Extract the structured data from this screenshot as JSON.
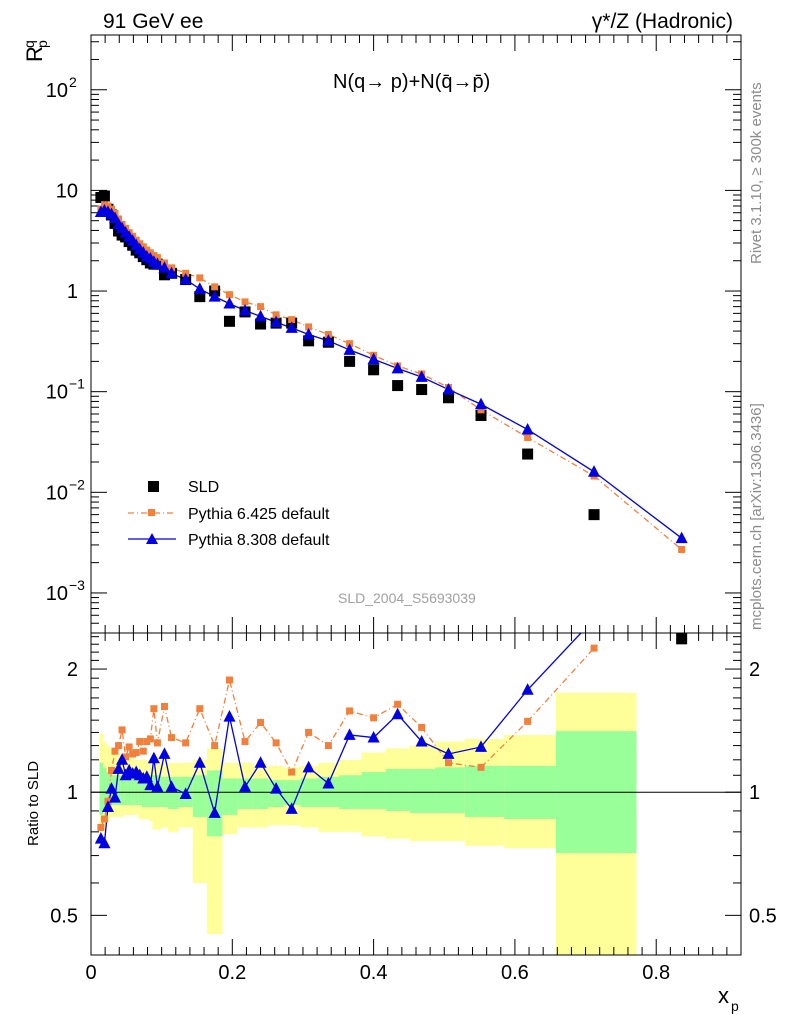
{
  "header": {
    "left": "91 GeV ee",
    "right": "γ*/Z (Hadronic)"
  },
  "side_labels": {
    "rivet": "Rivet 3.1.10, ≥ 300k events",
    "mcplots": "mcplots.cern.ch [arXiv:1306.3436]"
  },
  "chart_data": [
    {
      "type": "scatter",
      "title": "N(q→ p)+N(q̄→p̄)",
      "ylabel": "R",
      "ylabel_sup": "q",
      "ylabel_sub": "p",
      "xlabel": "",
      "yscale": "log",
      "ylim": [
        0.0004,
        350
      ],
      "xlim": [
        0,
        0.92
      ],
      "yticks": [
        {
          "v": 0.001,
          "base": "10",
          "exp": "−3"
        },
        {
          "v": 0.01,
          "base": "10",
          "exp": "−2"
        },
        {
          "v": 0.1,
          "base": "10",
          "exp": "−1"
        },
        {
          "v": 1,
          "base": "1",
          "exp": ""
        },
        {
          "v": 10,
          "base": "10",
          "exp": ""
        },
        {
          "v": 100,
          "base": "10",
          "exp": "2"
        }
      ],
      "watermark": "SLD_2004_S5693039",
      "legend_position": "bottom-left",
      "legend": [
        {
          "label": "SLD",
          "marker": "square",
          "color": "#000000"
        },
        {
          "label": "Pythia 6.425 default",
          "marker": "square-small",
          "color": "#f0803c",
          "dash": "dashdot"
        },
        {
          "label": "Pythia 8.308 default",
          "marker": "triangle",
          "color": "#0000e0",
          "dash": "solid"
        }
      ],
      "series": [
        {
          "name": "SLD",
          "x": [
            0.014,
            0.019,
            0.024,
            0.029,
            0.034,
            0.039,
            0.044,
            0.049,
            0.054,
            0.059,
            0.064,
            0.069,
            0.074,
            0.079,
            0.084,
            0.089,
            0.094,
            0.104,
            0.114,
            0.134,
            0.154,
            0.175,
            0.196,
            0.218,
            0.24,
            0.262,
            0.284,
            0.308,
            0.336,
            0.366,
            0.4,
            0.434,
            0.468,
            0.506,
            0.552,
            0.618,
            0.712,
            0.836
          ],
          "y": [
            8.5,
            8.8,
            6.5,
            5.7,
            4.7,
            3.95,
            3.6,
            3.45,
            3.1,
            2.85,
            2.55,
            2.4,
            2.2,
            2.05,
            1.9,
            1.85,
            1.85,
            1.45,
            1.5,
            1.3,
            0.88,
            1.0,
            0.5,
            0.62,
            0.47,
            0.48,
            0.48,
            0.32,
            0.31,
            0.2,
            0.165,
            0.115,
            0.105,
            0.087,
            0.058,
            0.024,
            0.006,
            0.00035
          ]
        },
        {
          "name": "Pythia 6.425 default",
          "x": [
            0.014,
            0.019,
            0.024,
            0.029,
            0.034,
            0.039,
            0.044,
            0.049,
            0.054,
            0.059,
            0.064,
            0.069,
            0.074,
            0.079,
            0.084,
            0.089,
            0.094,
            0.104,
            0.114,
            0.134,
            0.154,
            0.175,
            0.196,
            0.218,
            0.24,
            0.262,
            0.284,
            0.308,
            0.336,
            0.366,
            0.4,
            0.434,
            0.468,
            0.506,
            0.552,
            0.618,
            0.712,
            0.836
          ],
          "y": [
            6.5,
            7.2,
            7.0,
            6.5,
            5.9,
            5.2,
            4.6,
            4.2,
            3.8,
            3.5,
            3.2,
            2.95,
            2.75,
            2.55,
            2.4,
            2.25,
            2.15,
            1.9,
            1.7,
            1.5,
            1.35,
            1.1,
            0.92,
            0.78,
            0.7,
            0.58,
            0.52,
            0.44,
            0.37,
            0.3,
            0.23,
            0.18,
            0.15,
            0.11,
            0.066,
            0.035,
            0.0145,
            0.0027
          ]
        },
        {
          "name": "Pythia 8.308 default",
          "x": [
            0.014,
            0.019,
            0.024,
            0.029,
            0.034,
            0.039,
            0.044,
            0.049,
            0.054,
            0.059,
            0.064,
            0.069,
            0.074,
            0.079,
            0.084,
            0.089,
            0.094,
            0.104,
            0.114,
            0.134,
            0.154,
            0.175,
            0.196,
            0.218,
            0.24,
            0.262,
            0.284,
            0.308,
            0.336,
            0.366,
            0.4,
            0.434,
            0.468,
            0.506,
            0.552,
            0.618,
            0.712,
            0.836
          ],
          "y": [
            6.1,
            6.3,
            6.1,
            5.8,
            5.3,
            4.6,
            4.2,
            3.8,
            3.45,
            3.15,
            2.85,
            2.6,
            2.4,
            2.2,
            2.1,
            1.95,
            1.85,
            1.7,
            1.5,
            1.3,
            1.05,
            0.88,
            0.75,
            0.64,
            0.56,
            0.49,
            0.43,
            0.37,
            0.32,
            0.26,
            0.21,
            0.17,
            0.14,
            0.105,
            0.075,
            0.042,
            0.016,
            0.0035
          ]
        }
      ]
    },
    {
      "type": "line",
      "ylabel": "Ratio to SLD",
      "xlabel": "x",
      "xlabel_sub": "p",
      "yscale": "log",
      "ylim": [
        0.4,
        2.45
      ],
      "xlim": [
        0,
        0.92
      ],
      "yticks": [
        {
          "v": 0.5,
          "label": "0.5"
        },
        {
          "v": 1,
          "label": "1"
        },
        {
          "v": 2,
          "label": "2"
        }
      ],
      "xticks": [
        {
          "v": 0,
          "label": "0"
        },
        {
          "v": 0.2,
          "label": "0.2"
        },
        {
          "v": 0.4,
          "label": "0.4"
        },
        {
          "v": 0.6,
          "label": "0.6"
        },
        {
          "v": 0.8,
          "label": "0.8"
        }
      ],
      "bands": {
        "x_edges": [
          0.012,
          0.017,
          0.022,
          0.027,
          0.032,
          0.037,
          0.042,
          0.047,
          0.052,
          0.057,
          0.062,
          0.067,
          0.072,
          0.077,
          0.082,
          0.087,
          0.092,
          0.099,
          0.109,
          0.124,
          0.144,
          0.164,
          0.186,
          0.207,
          0.229,
          0.251,
          0.273,
          0.296,
          0.322,
          0.351,
          0.383,
          0.417,
          0.451,
          0.487,
          0.529,
          0.585,
          0.658,
          0.772
        ],
        "stat": [
          [
            0.88,
            1.18
          ],
          [
            0.9,
            1.15
          ],
          [
            0.92,
            1.12
          ],
          [
            0.93,
            1.1
          ],
          [
            0.93,
            1.1
          ],
          [
            0.93,
            1.1
          ],
          [
            0.93,
            1.1
          ],
          [
            0.93,
            1.1
          ],
          [
            0.93,
            1.1
          ],
          [
            0.93,
            1.1
          ],
          [
            0.93,
            1.1
          ],
          [
            0.93,
            1.1
          ],
          [
            0.92,
            1.1
          ],
          [
            0.92,
            1.1
          ],
          [
            0.92,
            1.1
          ],
          [
            0.92,
            1.1
          ],
          [
            0.92,
            1.1
          ],
          [
            0.92,
            1.09
          ],
          [
            0.91,
            1.09
          ],
          [
            0.92,
            1.09
          ],
          [
            0.87,
            1.1
          ],
          [
            0.78,
            1.13
          ],
          [
            0.88,
            1.08
          ],
          [
            0.91,
            1.08
          ],
          [
            0.91,
            1.08
          ],
          [
            0.92,
            1.07
          ],
          [
            0.93,
            1.07
          ],
          [
            0.92,
            1.08
          ],
          [
            0.92,
            1.09
          ],
          [
            0.91,
            1.1
          ],
          [
            0.91,
            1.12
          ],
          [
            0.9,
            1.14
          ],
          [
            0.89,
            1.14
          ],
          [
            0.89,
            1.15
          ],
          [
            0.87,
            1.16
          ],
          [
            0.86,
            1.16
          ],
          [
            0.71,
            1.41
          ]
        ],
        "total": [
          [
            0.8,
            1.39
          ],
          [
            0.82,
            1.33
          ],
          [
            0.85,
            1.3
          ],
          [
            0.87,
            1.28
          ],
          [
            0.87,
            1.25
          ],
          [
            0.87,
            1.24
          ],
          [
            0.87,
            1.22
          ],
          [
            0.88,
            1.22
          ],
          [
            0.88,
            1.21
          ],
          [
            0.88,
            1.21
          ],
          [
            0.88,
            1.2
          ],
          [
            0.86,
            1.2
          ],
          [
            0.86,
            1.2
          ],
          [
            0.86,
            1.2
          ],
          [
            0.85,
            1.2
          ],
          [
            0.81,
            1.2
          ],
          [
            0.81,
            1.2
          ],
          [
            0.82,
            1.18
          ],
          [
            0.8,
            1.18
          ],
          [
            0.82,
            1.18
          ],
          [
            0.6,
            1.2
          ],
          [
            0.45,
            1.28
          ],
          [
            0.79,
            1.18
          ],
          [
            0.82,
            1.18
          ],
          [
            0.82,
            1.16
          ],
          [
            0.83,
            1.16
          ],
          [
            0.83,
            1.15
          ],
          [
            0.82,
            1.16
          ],
          [
            0.8,
            1.18
          ],
          [
            0.8,
            1.2
          ],
          [
            0.78,
            1.25
          ],
          [
            0.77,
            1.28
          ],
          [
            0.76,
            1.3
          ],
          [
            0.76,
            1.33
          ],
          [
            0.74,
            1.35
          ],
          [
            0.73,
            1.38
          ],
          [
            0.3,
            1.75
          ]
        ]
      },
      "series": [
        {
          "name": "Pythia 6.425 default",
          "x": [
            0.014,
            0.019,
            0.024,
            0.029,
            0.034,
            0.039,
            0.044,
            0.049,
            0.054,
            0.059,
            0.064,
            0.069,
            0.074,
            0.079,
            0.084,
            0.089,
            0.094,
            0.104,
            0.114,
            0.134,
            0.154,
            0.175,
            0.196,
            0.218,
            0.24,
            0.262,
            0.284,
            0.308,
            0.336,
            0.366,
            0.4,
            0.434,
            0.468,
            0.506,
            0.552,
            0.618,
            0.712
          ],
          "y": [
            0.82,
            0.86,
            0.95,
            1.13,
            1.26,
            1.3,
            1.42,
            1.22,
            1.29,
            1.24,
            1.25,
            1.33,
            1.26,
            1.33,
            1.35,
            1.6,
            1.32,
            1.62,
            1.36,
            1.32,
            1.6,
            1.3,
            1.88,
            1.33,
            1.48,
            1.32,
            1.12,
            1.4,
            1.3,
            1.58,
            1.52,
            1.64,
            1.44,
            1.18,
            1.15,
            1.49,
            2.25
          ]
        },
        {
          "name": "Pythia 8.308 default",
          "x": [
            0.014,
            0.019,
            0.024,
            0.029,
            0.034,
            0.039,
            0.044,
            0.049,
            0.054,
            0.059,
            0.064,
            0.069,
            0.074,
            0.079,
            0.084,
            0.089,
            0.094,
            0.104,
            0.114,
            0.134,
            0.154,
            0.175,
            0.196,
            0.218,
            0.24,
            0.262,
            0.284,
            0.308,
            0.336,
            0.366,
            0.4,
            0.434,
            0.468,
            0.506,
            0.552,
            0.618,
            0.712
          ],
          "y": [
            0.77,
            0.75,
            0.92,
            1.02,
            0.97,
            1.14,
            1.2,
            1.1,
            1.13,
            1.11,
            1.12,
            1.1,
            1.08,
            1.09,
            1.04,
            1.21,
            1.03,
            1.24,
            1.03,
            0.99,
            1.18,
            0.89,
            1.53,
            1.03,
            1.18,
            1.02,
            0.91,
            1.15,
            1.05,
            1.38,
            1.36,
            1.55,
            1.33,
            1.24,
            1.29,
            1.78,
            2.65
          ]
        }
      ]
    }
  ]
}
